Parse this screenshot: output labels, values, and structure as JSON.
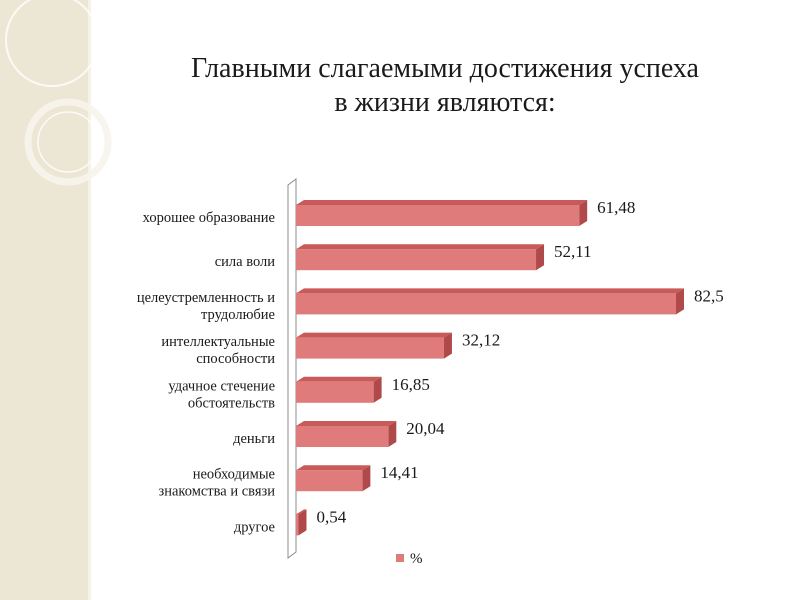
{
  "slide": {
    "title_line1": "Главными слагаемыми достижения успеха",
    "title_line2": "в жизни являются:"
  },
  "colors": {
    "bar_front": "#e07b7b",
    "bar_top": "#c95a5a",
    "bar_side": "#b04a4a",
    "panel": "#ece6d4"
  },
  "chart_data": {
    "type": "bar",
    "orientation": "horizontal",
    "three_d": true,
    "categories": [
      [
        "хорошее образование"
      ],
      [
        "сила воли"
      ],
      [
        "целеустремленность и",
        "трудолюбие"
      ],
      [
        "интеллектуальные",
        "способности"
      ],
      [
        "удачное стечение",
        "обстоятельств"
      ],
      [
        "деньги"
      ],
      [
        "необходимые",
        "знакомства и связи"
      ],
      [
        "другое"
      ]
    ],
    "series": [
      {
        "name": "%",
        "values": [
          61.48,
          52.11,
          82.5,
          32.12,
          16.85,
          20.04,
          14.41,
          0.54
        ],
        "labels": [
          "61,48",
          "52,11",
          "82,5",
          "32,12",
          "16,85",
          "20,04",
          "14,41",
          "0,54"
        ]
      }
    ],
    "xlim": [
      0,
      85
    ],
    "legend": "bottom",
    "grid": false
  }
}
